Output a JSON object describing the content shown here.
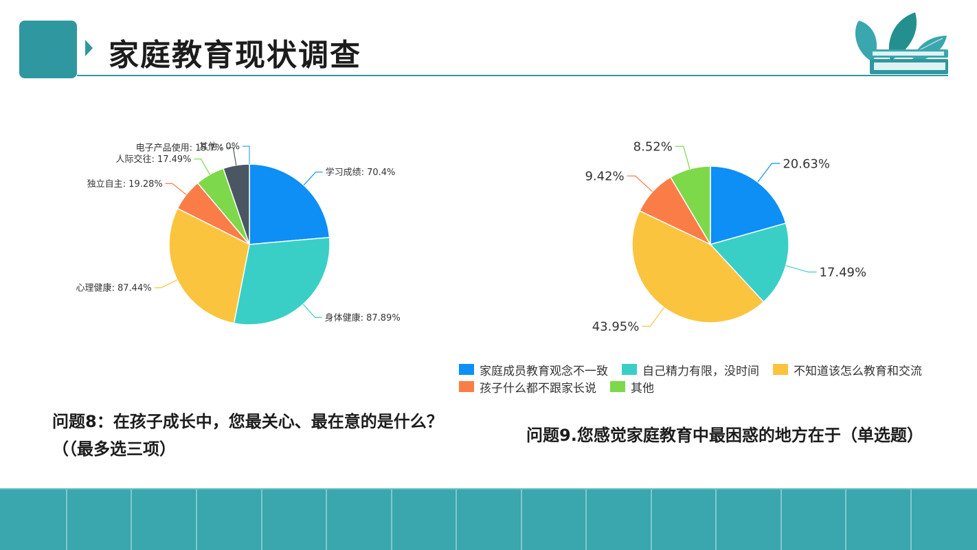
{
  "header": {
    "title": "家庭教育现状调查"
  },
  "questions": {
    "q8": "问题8：在孩子成长中，您最关心、最在意的是什么？（（最多选三项）",
    "q9": "问题9.您感觉家庭教育中最困惑的地方在于（单选题）"
  },
  "chart_data": [
    {
      "type": "pie",
      "title": "",
      "categories": [
        "学习成绩",
        "身体健康",
        "心理健康",
        "独立自主",
        "人际交往",
        "电子产品使用",
        "其他"
      ],
      "values": [
        70.4,
        87.89,
        87.44,
        19.28,
        17.49,
        15.7,
        0
      ],
      "labels": [
        "学习成绩: 70.4%",
        "身体健康: 87.89%",
        "心理健康: 87.44%",
        "独立自主: 19.28%",
        "人际交往: 17.49%",
        "电子产品使用: 15.7%",
        "其他 : 0%"
      ],
      "colors": [
        "#0d8ff5",
        "#39cfc7",
        "#fbc43f",
        "#fa7d47",
        "#7dd84a",
        "#4a5763",
        "#3ba3e8"
      ]
    },
    {
      "type": "pie",
      "title": "",
      "categories": [
        "家庭成员教育观念不一致",
        "自己精力有限，没时间",
        "不知道该怎么教育和交流",
        "孩子什么都不跟家长说",
        "其他"
      ],
      "values": [
        20.63,
        17.49,
        43.95,
        9.42,
        8.52
      ],
      "labels": [
        "20.63%",
        "17.49%",
        "43.95%",
        "9.42%",
        "8.52%"
      ],
      "colors": [
        "#0d8ff5",
        "#39cfc7",
        "#fbc43f",
        "#fa7d47",
        "#7dd84a"
      ],
      "legend": "bottom"
    }
  ]
}
